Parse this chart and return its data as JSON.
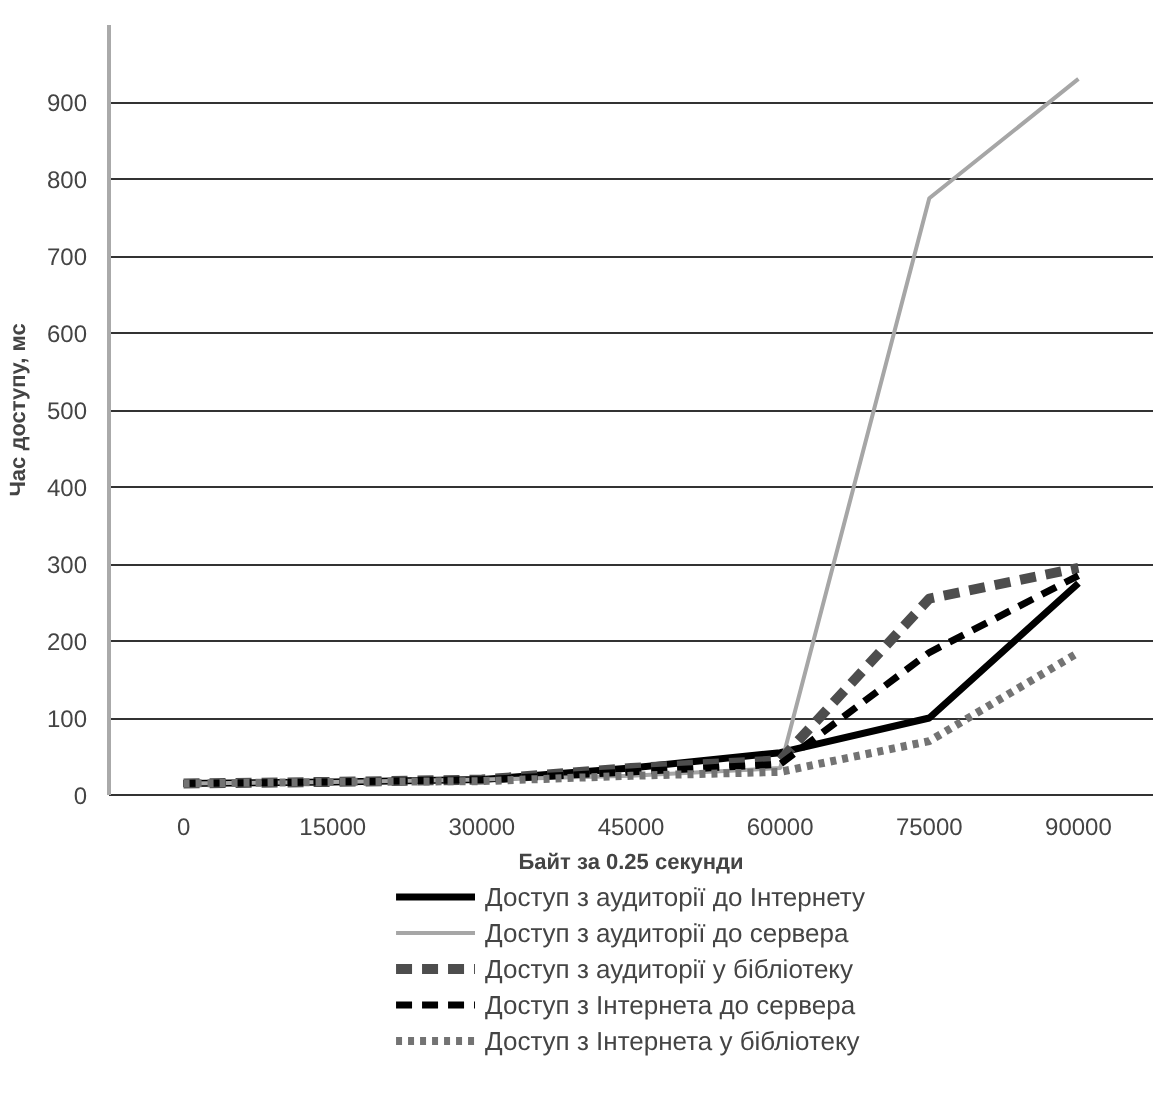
{
  "chart_data": {
    "type": "line",
    "xlabel": "Байт за 0.25 секунди",
    "ylabel": "Час доступу, мс",
    "categories": [
      "0",
      "15000",
      "30000",
      "45000",
      "60000",
      "75000",
      "90000"
    ],
    "ylim": [
      0,
      1000
    ],
    "yticks": [
      0,
      100,
      200,
      300,
      400,
      500,
      600,
      700,
      800,
      900
    ],
    "grid": "y",
    "legend": "bottom",
    "series": [
      {
        "name": "Доступ з аудиторії до Інтернету",
        "color": "#000000",
        "line_style": "solid",
        "values": [
          15,
          17,
          20,
          35,
          55,
          100,
          275
        ]
      },
      {
        "name": "Доступ з аудиторії до сервера",
        "color": "#a6a6a6",
        "line_style": "solid",
        "values": [
          15,
          17,
          20,
          25,
          35,
          775,
          930
        ]
      },
      {
        "name": "Доступ з аудиторії у бібліотеку",
        "color": "#4d4d4d",
        "line_style": "dashed",
        "values": [
          15,
          17,
          20,
          35,
          45,
          255,
          295
        ]
      },
      {
        "name": "Доступ з Інтернета до сервера",
        "color": "#000000",
        "line_style": "dashed",
        "values": [
          15,
          17,
          20,
          30,
          40,
          185,
          285
        ]
      },
      {
        "name": "Доступ з Інтернета у бібліотеку",
        "color": "#737373",
        "line_style": "dotted",
        "values": [
          15,
          17,
          18,
          25,
          30,
          70,
          185
        ]
      }
    ]
  }
}
